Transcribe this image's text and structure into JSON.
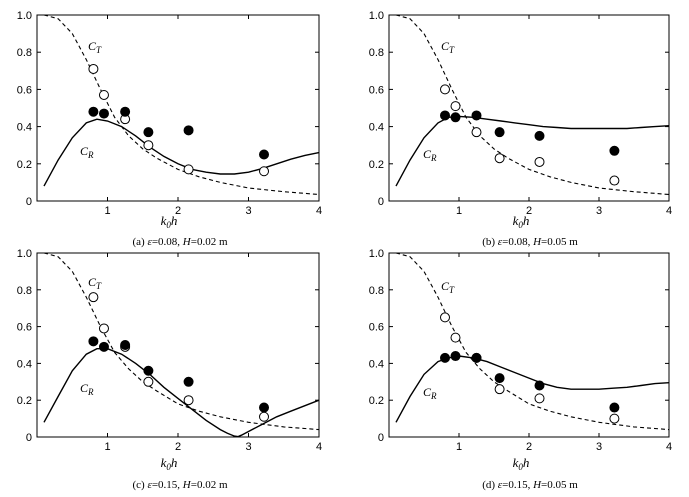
{
  "figure": {
    "panels": [
      {
        "caption": {
          "label": "(a) ",
          "eps_sym": "ε",
          "eps_val": "=0.08, ",
          "h_sym": "H",
          "h_val": "=0.02 m"
        },
        "ct_label": {
          "main": "C",
          "sub": "T"
        },
        "cr_label": {
          "main": "C",
          "sub": "R"
        }
      },
      {
        "caption": {
          "label": "(b) ",
          "eps_sym": "ε",
          "eps_val": "=0.08, ",
          "h_sym": "H",
          "h_val": "=0.05 m"
        },
        "ct_label": {
          "main": "C",
          "sub": "T"
        },
        "cr_label": {
          "main": "C",
          "sub": "R"
        }
      },
      {
        "caption": {
          "label": "(c) ",
          "eps_sym": "ε",
          "eps_val": "=0.15, ",
          "h_sym": "H",
          "h_val": "=0.02 m"
        },
        "ct_label": {
          "main": "C",
          "sub": "T"
        },
        "cr_label": {
          "main": "C",
          "sub": "R"
        }
      },
      {
        "caption": {
          "label": "(d) ",
          "eps_sym": "ε",
          "eps_val": "=0.15, ",
          "h_sym": "H",
          "h_val": "=0.05 m"
        },
        "ct_label": {
          "main": "C",
          "sub": "T"
        },
        "cr_label": {
          "main": "C",
          "sub": "R"
        }
      }
    ]
  },
  "chart_data": [
    {
      "type": "line",
      "panel": "a",
      "xlabel": {
        "main": "k",
        "sub": "0",
        "rest": "h"
      },
      "xlim": [
        0,
        4
      ],
      "ylim": [
        0,
        1
      ],
      "xticks": [
        1,
        2,
        3,
        4
      ],
      "xtick_labels": [
        "1",
        "2",
        "3",
        "4"
      ],
      "yticks": [
        0,
        0.2,
        0.4,
        0.6,
        0.8,
        1.0
      ],
      "ytick_labels": [
        "0",
        "0.2",
        "0.4",
        "0.6",
        "0.8",
        "1.0"
      ],
      "series": [
        {
          "name": "CT theory",
          "style": "dashed",
          "x": [
            0.1,
            0.3,
            0.5,
            0.7,
            0.9,
            1.1,
            1.3,
            1.5,
            1.7,
            2.0,
            2.3,
            2.6,
            3.0,
            3.5,
            4.0
          ],
          "y": [
            1.0,
            0.98,
            0.9,
            0.76,
            0.6,
            0.45,
            0.35,
            0.28,
            0.23,
            0.17,
            0.13,
            0.1,
            0.07,
            0.05,
            0.035
          ]
        },
        {
          "name": "CR theory",
          "style": "solid",
          "x": [
            0.1,
            0.3,
            0.5,
            0.7,
            0.85,
            1.0,
            1.2,
            1.4,
            1.6,
            1.8,
            2.0,
            2.2,
            2.4,
            2.6,
            2.8,
            3.0,
            3.2,
            3.4,
            3.6,
            3.8,
            4.0
          ],
          "y": [
            0.08,
            0.22,
            0.34,
            0.42,
            0.44,
            0.43,
            0.4,
            0.35,
            0.29,
            0.24,
            0.2,
            0.17,
            0.155,
            0.145,
            0.145,
            0.155,
            0.175,
            0.2,
            0.225,
            0.245,
            0.26
          ]
        },
        {
          "name": "CT measured",
          "marker": "open",
          "x": [
            0.8,
            0.95,
            1.25,
            1.58,
            2.15,
            3.22
          ],
          "y": [
            0.71,
            0.57,
            0.44,
            0.3,
            0.17,
            0.16
          ]
        },
        {
          "name": "CR measured",
          "marker": "filled",
          "x": [
            0.8,
            0.95,
            1.25,
            1.58,
            2.15,
            3.22
          ],
          "y": [
            0.48,
            0.47,
            0.48,
            0.37,
            0.38,
            0.25
          ]
        }
      ],
      "ct_label_pos": [
        1.05,
        0.83
      ],
      "cr_label_pos": [
        0.5,
        0.27
      ]
    },
    {
      "type": "line",
      "panel": "b",
      "xlabel": {
        "main": "k",
        "sub": "0",
        "rest": "h"
      },
      "xlim": [
        0,
        4
      ],
      "ylim": [
        0,
        1
      ],
      "xticks": [
        1,
        2,
        3,
        4
      ],
      "xtick_labels": [
        "1",
        "2",
        "3",
        "4"
      ],
      "yticks": [
        0,
        0.2,
        0.4,
        0.6,
        0.8,
        1.0
      ],
      "ytick_labels": [
        "0",
        "0.2",
        "0.4",
        "0.6",
        "0.8",
        "1.0"
      ],
      "series": [
        {
          "name": "CT theory",
          "style": "dashed",
          "x": [
            0.1,
            0.3,
            0.5,
            0.7,
            0.9,
            1.1,
            1.3,
            1.5,
            1.7,
            2.0,
            2.3,
            2.6,
            3.0,
            3.5,
            4.0
          ],
          "y": [
            1.0,
            0.98,
            0.9,
            0.76,
            0.6,
            0.45,
            0.35,
            0.28,
            0.23,
            0.17,
            0.13,
            0.1,
            0.07,
            0.05,
            0.035
          ]
        },
        {
          "name": "CR theory",
          "style": "solid",
          "x": [
            0.1,
            0.3,
            0.5,
            0.7,
            0.85,
            1.0,
            1.2,
            1.4,
            1.6,
            1.8,
            2.0,
            2.2,
            2.4,
            2.6,
            2.8,
            3.0,
            3.2,
            3.4,
            3.6,
            3.8,
            4.0
          ],
          "y": [
            0.08,
            0.22,
            0.34,
            0.42,
            0.45,
            0.455,
            0.45,
            0.44,
            0.43,
            0.42,
            0.41,
            0.4,
            0.395,
            0.39,
            0.39,
            0.39,
            0.39,
            0.39,
            0.395,
            0.4,
            0.405
          ]
        },
        {
          "name": "CT measured",
          "marker": "open",
          "x": [
            0.8,
            0.95,
            1.25,
            1.58,
            2.15,
            3.22
          ],
          "y": [
            0.6,
            0.51,
            0.37,
            0.23,
            0.21,
            0.11
          ]
        },
        {
          "name": "CR measured",
          "marker": "filled",
          "x": [
            0.8,
            0.95,
            1.25,
            1.58,
            2.15,
            3.22
          ],
          "y": [
            0.46,
            0.45,
            0.46,
            0.37,
            0.35,
            0.27
          ]
        }
      ],
      "ct_label_pos": [
        1.05,
        0.83
      ],
      "cr_label_pos": [
        0.5,
        0.25
      ]
    },
    {
      "type": "line",
      "panel": "c",
      "xlabel": {
        "main": "k",
        "sub": "0",
        "rest": "h"
      },
      "xlim": [
        0,
        4
      ],
      "ylim": [
        0,
        1
      ],
      "xticks": [
        1,
        2,
        3,
        4
      ],
      "xtick_labels": [
        "1",
        "2",
        "3",
        "4"
      ],
      "yticks": [
        0,
        0.2,
        0.4,
        0.6,
        0.8,
        1.0
      ],
      "ytick_labels": [
        "0",
        "0.2",
        "0.4",
        "0.6",
        "0.8",
        "1.0"
      ],
      "series": [
        {
          "name": "CT theory",
          "style": "dashed",
          "x": [
            0.1,
            0.3,
            0.5,
            0.7,
            0.9,
            1.1,
            1.3,
            1.5,
            1.7,
            2.0,
            2.3,
            2.6,
            3.0,
            3.5,
            4.0
          ],
          "y": [
            1.0,
            0.98,
            0.9,
            0.76,
            0.6,
            0.46,
            0.37,
            0.3,
            0.25,
            0.18,
            0.14,
            0.11,
            0.08,
            0.055,
            0.04
          ]
        },
        {
          "name": "CR theory",
          "style": "solid",
          "x": [
            0.1,
            0.3,
            0.5,
            0.7,
            0.85,
            1.0,
            1.2,
            1.4,
            1.6,
            1.8,
            2.0,
            2.2,
            2.4,
            2.6,
            2.7,
            2.8,
            2.85,
            2.9,
            3.0,
            3.2,
            3.4,
            3.6,
            3.8,
            4.0
          ],
          "y": [
            0.08,
            0.22,
            0.36,
            0.45,
            0.48,
            0.48,
            0.45,
            0.4,
            0.34,
            0.27,
            0.21,
            0.15,
            0.09,
            0.04,
            0.02,
            0.005,
            0.002,
            0.01,
            0.03,
            0.07,
            0.11,
            0.14,
            0.17,
            0.2
          ]
        },
        {
          "name": "CT measured",
          "marker": "open",
          "x": [
            0.8,
            0.95,
            1.25,
            1.58,
            2.15,
            3.22
          ],
          "y": [
            0.76,
            0.59,
            0.49,
            0.3,
            0.2,
            0.11
          ]
        },
        {
          "name": "CR measured",
          "marker": "filled",
          "x": [
            0.8,
            0.95,
            1.25,
            1.58,
            2.15,
            3.22
          ],
          "y": [
            0.52,
            0.49,
            0.5,
            0.36,
            0.3,
            0.16
          ]
        }
      ],
      "ct_label_pos": [
        1.05,
        0.83
      ],
      "cr_label_pos": [
        0.5,
        0.27
      ]
    },
    {
      "type": "line",
      "panel": "d",
      "xlabel": {
        "main": "k",
        "sub": "0",
        "rest": "h"
      },
      "xlim": [
        0,
        4
      ],
      "ylim": [
        0,
        1
      ],
      "xticks": [
        1,
        2,
        3,
        4
      ],
      "xtick_labels": [
        "1",
        "2",
        "3",
        "4"
      ],
      "yticks": [
        0,
        0.2,
        0.4,
        0.6,
        0.8,
        1.0
      ],
      "ytick_labels": [
        "0",
        "0.2",
        "0.4",
        "0.6",
        "0.8",
        "1.0"
      ],
      "series": [
        {
          "name": "CT theory",
          "style": "dashed",
          "x": [
            0.1,
            0.3,
            0.5,
            0.7,
            0.9,
            1.1,
            1.3,
            1.5,
            1.7,
            2.0,
            2.3,
            2.6,
            3.0,
            3.5,
            4.0
          ],
          "y": [
            1.0,
            0.98,
            0.9,
            0.76,
            0.6,
            0.46,
            0.37,
            0.3,
            0.25,
            0.18,
            0.14,
            0.11,
            0.08,
            0.055,
            0.04
          ]
        },
        {
          "name": "CR theory",
          "style": "solid",
          "x": [
            0.1,
            0.3,
            0.5,
            0.7,
            0.85,
            1.0,
            1.2,
            1.4,
            1.6,
            1.8,
            2.0,
            2.2,
            2.4,
            2.6,
            2.8,
            3.0,
            3.2,
            3.4,
            3.6,
            3.8,
            4.0
          ],
          "y": [
            0.08,
            0.22,
            0.34,
            0.41,
            0.43,
            0.44,
            0.43,
            0.41,
            0.38,
            0.35,
            0.32,
            0.29,
            0.27,
            0.26,
            0.26,
            0.26,
            0.265,
            0.27,
            0.28,
            0.29,
            0.295
          ]
        },
        {
          "name": "CT measured",
          "marker": "open",
          "x": [
            0.8,
            0.95,
            1.25,
            1.58,
            2.15,
            3.22
          ],
          "y": [
            0.65,
            0.54,
            0.43,
            0.26,
            0.21,
            0.1
          ]
        },
        {
          "name": "CR measured",
          "marker": "filled",
          "x": [
            0.8,
            0.95,
            1.25,
            1.58,
            2.15,
            3.22
          ],
          "y": [
            0.43,
            0.44,
            0.43,
            0.32,
            0.28,
            0.16
          ]
        }
      ],
      "ct_label_pos": [
        1.05,
        0.83
      ],
      "cr_label_pos": [
        0.5,
        0.25
      ]
    }
  ]
}
